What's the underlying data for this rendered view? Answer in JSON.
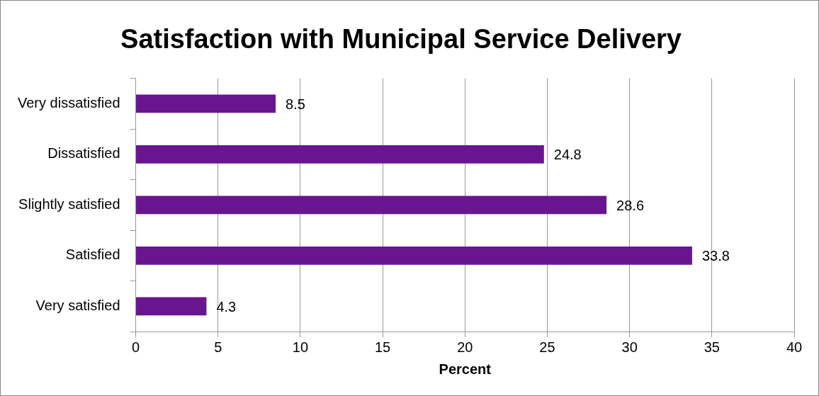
{
  "chart_data": {
    "type": "bar",
    "title": "Satisfaction with Municipal Service Delivery",
    "xlabel": "Percent",
    "orientation": "horizontal",
    "categories": [
      "Very dissatisfied",
      "Dissatisfied",
      "Slightly satisfied",
      "Satisfied",
      "Very satisfied"
    ],
    "values": [
      8.5,
      24.8,
      28.6,
      33.8,
      4.3
    ],
    "color": "#6a1590",
    "xlim": [
      0,
      40
    ],
    "xticks": [
      0,
      5,
      10,
      15,
      20,
      25,
      30,
      35,
      40
    ],
    "grid": "x",
    "data_labels": true,
    "legend": false
  }
}
